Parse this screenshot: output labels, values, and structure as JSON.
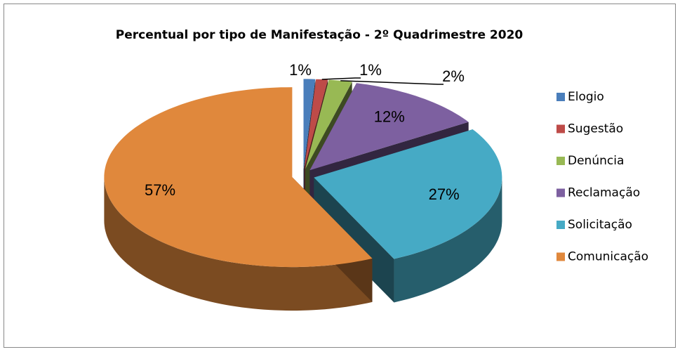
{
  "chart_data": {
    "type": "pie3d",
    "title": "Percentual por tipo de Manifestação - 2º Quadrimestre 2020",
    "categories": [
      "Elogio",
      "Sugestão",
      "Denúncia",
      "Reclamação",
      "Solicitação",
      "Comunicação"
    ],
    "values": [
      1,
      1,
      2,
      12,
      27,
      57
    ],
    "value_labels": [
      "1%",
      "1%",
      "2%",
      "12%",
      "27%",
      "57%"
    ],
    "colors": [
      "#4a7ebb",
      "#be4b48",
      "#98b954",
      "#7d60a0",
      "#46aac5",
      "#e0883c"
    ],
    "legend": "right"
  }
}
